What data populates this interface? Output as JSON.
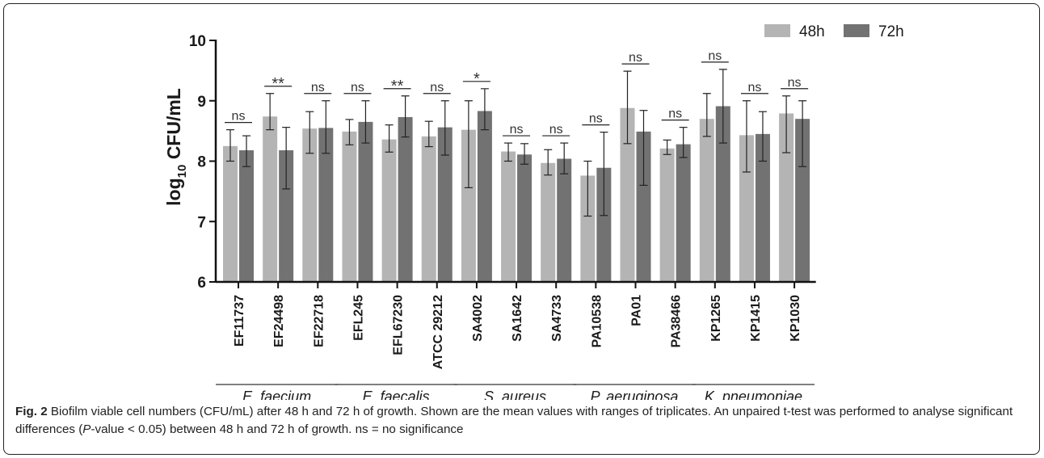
{
  "chart_data": {
    "type": "bar",
    "ylabel_main": "log",
    "ylabel_sub": "10",
    "ylabel_rest": " CFU/mL",
    "ylim": [
      6,
      10
    ],
    "yticks": [
      "6",
      "7",
      "8",
      "9",
      "10"
    ],
    "grid": false,
    "legend_position": "top-right",
    "categories": [
      "EF11737",
      "EF24498",
      "EF22718",
      "EFL245",
      "EFL67230",
      "ATCC 29212",
      "SA4002",
      "SA1642",
      "SA4733",
      "PA10538",
      "PA01",
      "PA38466",
      "KP1265",
      "KP1415",
      "KP1030"
    ],
    "series": [
      {
        "name": "48h",
        "color": "#b4b4b4",
        "values": [
          8.25,
          8.74,
          8.54,
          8.49,
          8.36,
          8.41,
          8.52,
          8.16,
          7.97,
          7.76,
          8.88,
          8.21,
          8.7,
          8.43,
          8.79
        ],
        "range_low": [
          8.0,
          8.52,
          8.13,
          8.27,
          8.15,
          8.24,
          7.56,
          8.0,
          7.77,
          7.09,
          8.29,
          8.11,
          8.41,
          7.82,
          8.14
        ],
        "range_high": [
          8.52,
          9.12,
          8.82,
          8.69,
          8.6,
          8.66,
          9.0,
          8.3,
          8.19,
          8.0,
          9.49,
          8.35,
          9.12,
          9.0,
          9.08
        ]
      },
      {
        "name": "72h",
        "color": "#727272",
        "values": [
          8.18,
          8.18,
          8.55,
          8.65,
          8.73,
          8.56,
          8.83,
          8.11,
          8.04,
          7.89,
          8.49,
          8.28,
          8.91,
          8.45,
          8.7
        ],
        "range_low": [
          7.91,
          7.54,
          8.13,
          8.3,
          8.4,
          8.1,
          8.52,
          7.95,
          7.79,
          7.1,
          7.6,
          8.06,
          8.3,
          8.0,
          7.91
        ],
        "range_high": [
          8.42,
          8.56,
          9.0,
          9.0,
          9.08,
          9.0,
          9.2,
          8.29,
          8.3,
          8.48,
          8.84,
          8.56,
          9.52,
          8.82,
          9.0
        ]
      }
    ],
    "significance": [
      "ns",
      "**",
      "ns",
      "ns",
      "**",
      "ns",
      "*",
      "ns",
      "ns",
      "ns",
      "ns",
      "ns",
      "ns",
      "ns",
      "ns"
    ],
    "groups": [
      {
        "label": "E. faecium",
        "from": 0,
        "to": 2
      },
      {
        "label": "E. faecalis",
        "from": 3,
        "to": 5
      },
      {
        "label": "S. aureus",
        "from": 6,
        "to": 8
      },
      {
        "label": "P. aeruginosa",
        "from": 9,
        "to": 11
      },
      {
        "label": "K. pneumoniae",
        "from": 12,
        "to": 14
      }
    ]
  },
  "caption": {
    "fig_label": "Fig. 2",
    "text_1": " Biofilm viable cell numbers (CFU/mL) after 48 h and 72 h of growth. Shown are the mean values with ranges of triplicates. An unpaired t-test was performed to analyse significant differences (",
    "p_italic": "P",
    "text_2": "-value < 0.05) between 48 h and 72 h of growth. ns = no significance"
  }
}
